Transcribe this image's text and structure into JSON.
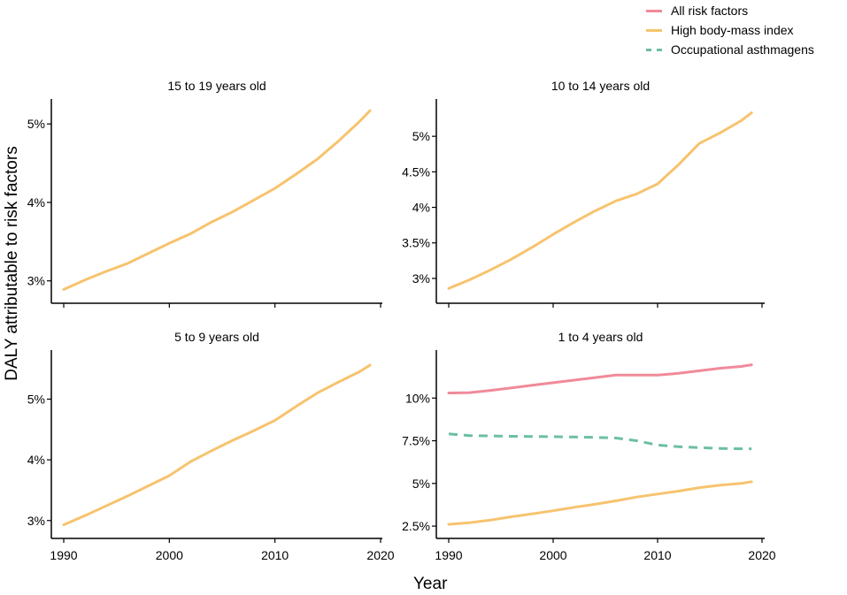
{
  "chart_data": {
    "type": "line",
    "xlabel": "Year",
    "ylabel": "DALY attributable to risk factors",
    "legend": [
      {
        "name": "All risk factors",
        "color": "#f08a9a",
        "style": "solid"
      },
      {
        "name": "High body-mass index",
        "color": "#f7c36e",
        "style": "solid"
      },
      {
        "name": "Occupational asthmagens",
        "color": "#6cbfa3",
        "style": "dashed"
      }
    ],
    "panels": [
      {
        "title": "15 to 19 years old",
        "x": [
          1990,
          1992,
          1994,
          1996,
          1998,
          2000,
          2002,
          2004,
          2006,
          2008,
          2010,
          2012,
          2014,
          2016,
          2018,
          2019
        ],
        "xticks": [
          "1990",
          "2000",
          "2010",
          "2020"
        ],
        "xticks_values": [
          1990,
          2000,
          2010,
          2020
        ],
        "ylim": [
          2.85,
          5.25
        ],
        "yticks": [
          "3%",
          "4%",
          "5%"
        ],
        "yticks_values": [
          3,
          4,
          5
        ],
        "series": [
          {
            "name": "High body-mass index",
            "values": [
              2.89,
              3.01,
              3.12,
              3.22,
              3.35,
              3.48,
              3.6,
              3.75,
              3.88,
              4.03,
              4.18,
              4.36,
              4.55,
              4.78,
              5.03,
              5.17
            ]
          }
        ]
      },
      {
        "title": "10 to 14 years old",
        "x": [
          1990,
          1992,
          1994,
          1996,
          1998,
          2000,
          2002,
          2004,
          2006,
          2008,
          2010,
          2012,
          2014,
          2016,
          2018,
          2019
        ],
        "xticks": [
          "1990",
          "2000",
          "2010",
          "2020"
        ],
        "xticks_values": [
          1990,
          2000,
          2010,
          2020
        ],
        "ylim": [
          2.8,
          5.45
        ],
        "yticks": [
          "3%",
          "3.5%",
          "4%",
          "4.5%",
          "5%"
        ],
        "yticks_values": [
          3,
          3.5,
          4,
          4.5,
          5
        ],
        "series": [
          {
            "name": "High body-mass index",
            "values": [
              2.86,
              2.98,
              3.12,
              3.27,
              3.44,
              3.62,
              3.79,
              3.95,
              4.09,
              4.19,
              4.33,
              4.6,
              4.9,
              5.05,
              5.22,
              5.33
            ]
          }
        ]
      },
      {
        "title": "5 to 9 years old",
        "x": [
          1990,
          1992,
          1994,
          1996,
          1998,
          2000,
          2002,
          2004,
          2006,
          2008,
          2010,
          2012,
          2014,
          2016,
          2018,
          2019
        ],
        "xticks": [
          "1990",
          "2000",
          "2010",
          "2020"
        ],
        "xticks_values": [
          1990,
          2000,
          2010,
          2020
        ],
        "ylim": [
          2.88,
          5.72
        ],
        "yticks": [
          "3%",
          "4%",
          "5%"
        ],
        "yticks_values": [
          3,
          4,
          5
        ],
        "series": [
          {
            "name": "High body-mass index",
            "values": [
              2.93,
              3.08,
              3.24,
              3.4,
              3.57,
              3.74,
              3.97,
              4.15,
              4.32,
              4.48,
              4.65,
              4.88,
              5.1,
              5.28,
              5.45,
              5.56
            ]
          }
        ]
      },
      {
        "title": "1 to 4 years old",
        "x": [
          1990,
          1992,
          1994,
          1996,
          1998,
          2000,
          2002,
          2004,
          2006,
          2008,
          2010,
          2012,
          2014,
          2016,
          2018,
          2019
        ],
        "xticks": [
          "1990",
          "2000",
          "2010",
          "2020"
        ],
        "xticks_values": [
          1990,
          2000,
          2010,
          2020
        ],
        "ylim": [
          2.4,
          12.5
        ],
        "yticks": [
          "2.5%",
          "5%",
          "7.5%",
          "10%"
        ],
        "yticks_values": [
          2.5,
          5,
          7.5,
          10
        ],
        "series": [
          {
            "name": "All risk factors",
            "values": [
              10.3,
              10.32,
              10.45,
              10.6,
              10.75,
              10.9,
              11.05,
              11.2,
              11.35,
              11.35,
              11.35,
              11.45,
              11.6,
              11.75,
              11.85,
              11.95
            ]
          },
          {
            "name": "Occupational asthmagens",
            "values": [
              7.9,
              7.8,
              7.78,
              7.76,
              7.75,
              7.74,
              7.72,
              7.7,
              7.66,
              7.5,
              7.25,
              7.15,
              7.1,
              7.05,
              7.03,
              7.03
            ]
          },
          {
            "name": "High body-mass index",
            "values": [
              2.6,
              2.7,
              2.85,
              3.05,
              3.22,
              3.4,
              3.6,
              3.78,
              3.98,
              4.2,
              4.38,
              4.55,
              4.75,
              4.9,
              5.0,
              5.1
            ]
          }
        ]
      }
    ]
  }
}
